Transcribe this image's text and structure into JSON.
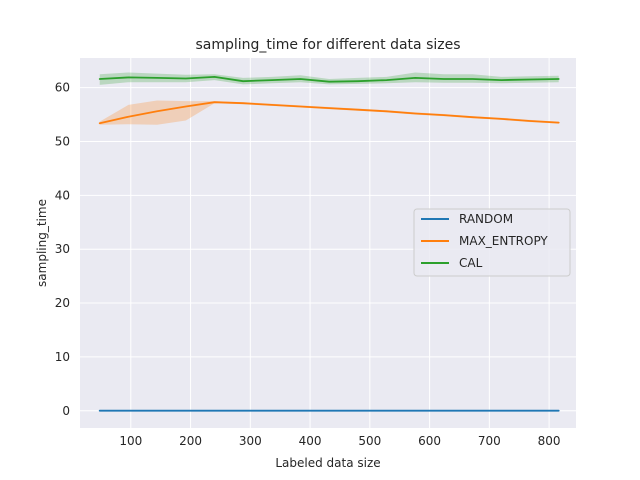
{
  "chart_data": {
    "type": "line",
    "title": "sampling_time for different data sizes",
    "xlabel": "Labeled data size",
    "ylabel": "sampling_time",
    "xlim": [
      15,
      845
    ],
    "ylim": [
      -3.2,
      65.5
    ],
    "xticks": [
      100,
      200,
      300,
      400,
      500,
      600,
      700,
      800
    ],
    "yticks": [
      0,
      10,
      20,
      30,
      40,
      50,
      60
    ],
    "grid": true,
    "legend_position": "center-right",
    "series": [
      {
        "name": "RANDOM",
        "color": "#1f77b4",
        "x": [
          48,
          96,
          144,
          192,
          240,
          288,
          336,
          384,
          432,
          480,
          528,
          576,
          624,
          672,
          720,
          768,
          816
        ],
        "y": [
          0.02,
          0.02,
          0.02,
          0.02,
          0.02,
          0.02,
          0.02,
          0.02,
          0.02,
          0.02,
          0.02,
          0.02,
          0.02,
          0.02,
          0.02,
          0.02,
          0.02
        ],
        "lower": [
          0.0,
          0.0,
          0.0,
          0.0,
          0.0,
          0.0,
          0.0,
          0.0,
          0.0,
          0.0,
          0.0,
          0.0,
          0.0,
          0.0,
          0.0,
          0.0,
          0.0
        ],
        "upper": [
          0.04,
          0.04,
          0.04,
          0.04,
          0.04,
          0.04,
          0.04,
          0.04,
          0.04,
          0.04,
          0.04,
          0.04,
          0.04,
          0.04,
          0.04,
          0.04,
          0.04
        ]
      },
      {
        "name": "MAX_ENTROPY",
        "color": "#ff7f0e",
        "x": [
          48,
          96,
          144,
          192,
          240,
          288,
          336,
          384,
          432,
          480,
          528,
          576,
          624,
          672,
          720,
          768,
          816
        ],
        "y": [
          53.4,
          54.6,
          55.6,
          56.5,
          57.3,
          57.1,
          56.8,
          56.5,
          56.2,
          55.9,
          55.6,
          55.2,
          54.9,
          54.5,
          54.2,
          53.8,
          53.5
        ],
        "lower": [
          53.1,
          53.2,
          53.1,
          53.9,
          57.1,
          56.9,
          56.6,
          56.3,
          56.0,
          55.7,
          55.4,
          55.0,
          54.7,
          54.3,
          54.0,
          53.6,
          53.3
        ],
        "upper": [
          53.7,
          56.8,
          57.6,
          57.5,
          57.5,
          57.3,
          57.0,
          56.7,
          56.4,
          56.1,
          55.8,
          55.4,
          55.1,
          54.7,
          54.4,
          54.0,
          53.7
        ]
      },
      {
        "name": "CAL",
        "color": "#2ca02c",
        "x": [
          48,
          96,
          144,
          192,
          240,
          288,
          336,
          384,
          432,
          480,
          528,
          576,
          624,
          672,
          720,
          768,
          816
        ],
        "y": [
          61.6,
          61.9,
          61.8,
          61.7,
          62.0,
          61.2,
          61.4,
          61.6,
          61.1,
          61.2,
          61.4,
          61.8,
          61.6,
          61.6,
          61.4,
          61.5,
          61.6
        ],
        "lower": [
          60.5,
          61.0,
          61.0,
          61.0,
          61.4,
          60.6,
          60.8,
          61.0,
          60.6,
          60.7,
          60.8,
          61.0,
          60.9,
          60.9,
          60.8,
          60.9,
          61.0
        ],
        "upper": [
          62.5,
          62.8,
          62.6,
          62.4,
          62.5,
          61.8,
          62.0,
          62.3,
          61.6,
          61.8,
          62.0,
          62.8,
          62.5,
          62.5,
          62.0,
          62.1,
          62.2
        ]
      }
    ]
  }
}
